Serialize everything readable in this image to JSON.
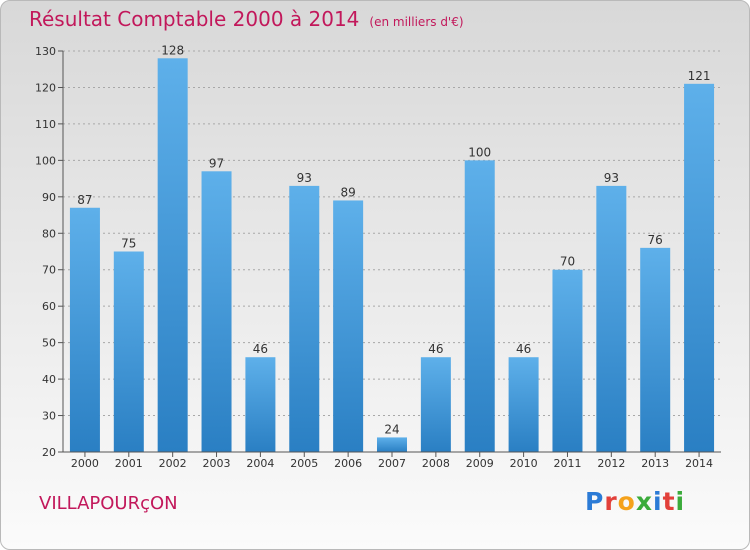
{
  "header": {
    "title": "Résultat Comptable 2000 à 2014",
    "subtitle": "(en milliers d'€)"
  },
  "footer": {
    "commune": "VILLAPOURçON",
    "logo": "Proxiti"
  },
  "colors": {
    "title": "#c2185b",
    "bar_top": "#5eb0ea",
    "bar_bottom": "#2a7fc3"
  },
  "chart_data": {
    "type": "bar",
    "title": "Résultat Comptable 2000 à 2014",
    "xlabel": "",
    "ylabel": "en milliers d'€",
    "categories": [
      "2000",
      "2001",
      "2002",
      "2003",
      "2004",
      "2005",
      "2006",
      "2007",
      "2008",
      "2009",
      "2010",
      "2011",
      "2012",
      "2013",
      "2014"
    ],
    "values": [
      87,
      75,
      128,
      97,
      46,
      93,
      89,
      24,
      46,
      100,
      46,
      70,
      93,
      76,
      121
    ],
    "ylim": [
      20,
      130
    ],
    "yticks": [
      20,
      30,
      40,
      50,
      60,
      70,
      80,
      90,
      100,
      110,
      120,
      130
    ],
    "grid": true
  }
}
